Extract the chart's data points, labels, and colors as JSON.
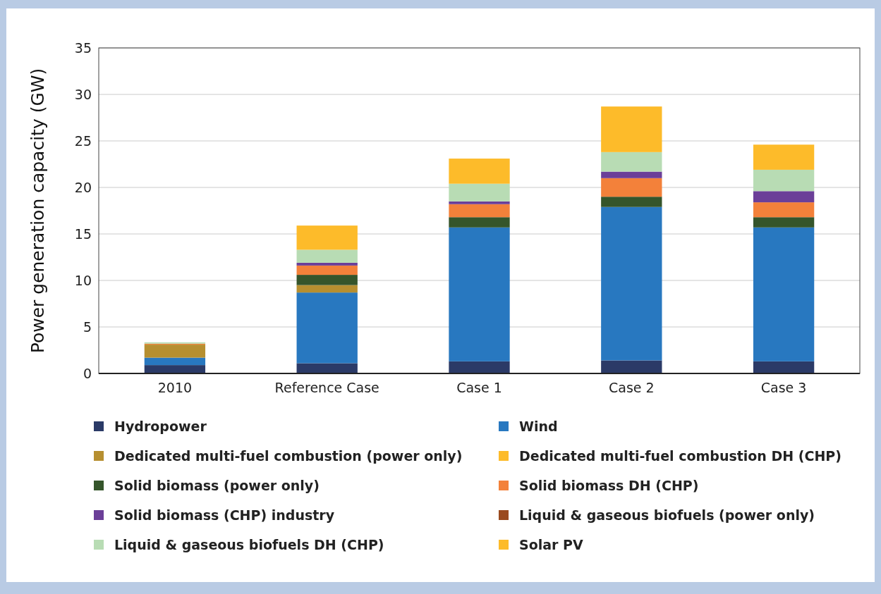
{
  "chart_data": {
    "type": "bar",
    "stacked": true,
    "ylabel": "Power generation capacity (GW)",
    "categories": [
      "2010",
      "Reference Case",
      "Case 1",
      "Case 2",
      "Case 3"
    ],
    "ylim": [
      0,
      35
    ],
    "yticks": [
      0,
      5,
      10,
      15,
      20,
      25,
      30,
      35
    ],
    "grid": "y",
    "legend": "bottom",
    "series": [
      {
        "name": "Hydropower",
        "color": "#2b3a67",
        "values": [
          0.9,
          1.1,
          1.3,
          1.4,
          1.3
        ]
      },
      {
        "name": "Wind",
        "color": "#2878c0",
        "values": [
          0.8,
          7.6,
          14.4,
          16.5,
          14.4
        ]
      },
      {
        "name": "Dedicated multi-fuel combustion (power only)",
        "color": "#b68f30",
        "values": [
          1.4,
          0.8,
          0,
          0,
          0
        ]
      },
      {
        "name": "Dedicated multi-fuel combustion DH (CHP)",
        "color": "#fdbb2a",
        "values": [
          0,
          0,
          0,
          0,
          0
        ]
      },
      {
        "name": "Solid biomass (power only)",
        "color": "#35552b",
        "values": [
          0,
          1.1,
          1.1,
          1.1,
          1.1
        ]
      },
      {
        "name": "Solid biomass DH (CHP)",
        "color": "#f3813a",
        "values": [
          0.1,
          1.0,
          1.4,
          2.0,
          1.6
        ]
      },
      {
        "name": "Solid biomass (CHP) industry",
        "color": "#6b3f98",
        "values": [
          0,
          0.3,
          0.3,
          0.7,
          1.2
        ]
      },
      {
        "name": "Liquid & gaseous biofuels (power only)",
        "color": "#9a4a1f",
        "values": [
          0,
          0,
          0,
          0,
          0
        ]
      },
      {
        "name": "Liquid & gaseous biofuels DH (CHP)",
        "color": "#b8dcb4",
        "values": [
          0.15,
          1.4,
          1.9,
          2.1,
          2.3
        ]
      },
      {
        "name": "Solar PV",
        "color": "#fdbb2a",
        "values": [
          0,
          2.6,
          2.7,
          4.9,
          2.7
        ]
      }
    ]
  }
}
